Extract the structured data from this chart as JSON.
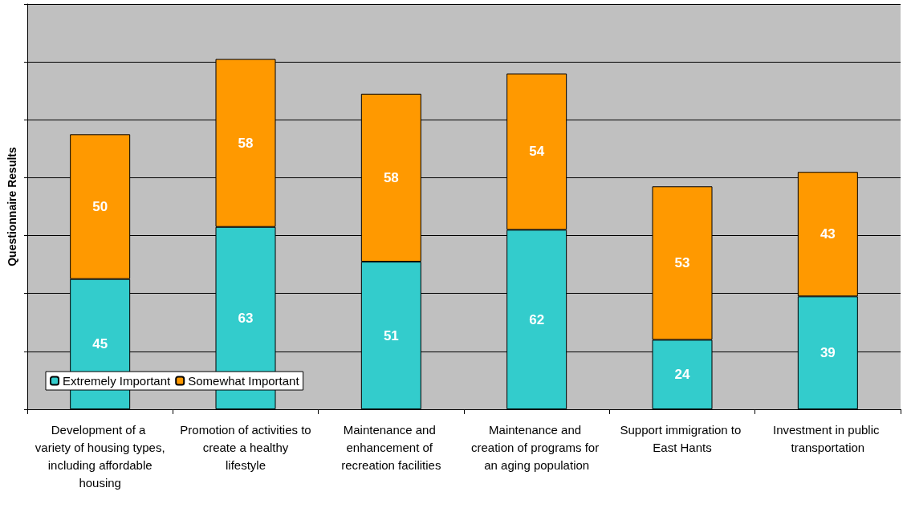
{
  "chart_data": {
    "type": "bar",
    "stacked": true,
    "ylabel": "Questionnaire Results",
    "categories": [
      "Development of a variety of housing types, including affordable housing",
      "Promotion of activities to create a healthy lifestyle",
      "Maintenance and enhancement of recreation facilities",
      "Maintenance and creation of programs for an aging population",
      "Support immigration to East Hants",
      "Investment in public transportation"
    ],
    "series": [
      {
        "name": "Extremely Important",
        "color": "#33cccc",
        "values": [
          45,
          63,
          51,
          62,
          24,
          39
        ]
      },
      {
        "name": "Somewhat Important",
        "color": "#ff9900",
        "values": [
          50,
          58,
          58,
          54,
          53,
          43
        ]
      }
    ],
    "ylim": [
      0,
      140
    ],
    "yticks": [
      {
        "value": 0,
        "label": null
      },
      {
        "value": 20,
        "label": null
      },
      {
        "value": 40,
        "label": null
      },
      {
        "value": 60,
        "label": null
      },
      {
        "value": 80,
        "label": null
      },
      {
        "value": 100,
        "label": null
      },
      {
        "value": 120,
        "label": null
      },
      {
        "value": 140,
        "label": null
      }
    ],
    "tick_labels": "x",
    "grid": "y",
    "legend": "bottom left",
    "data_labels": true
  }
}
